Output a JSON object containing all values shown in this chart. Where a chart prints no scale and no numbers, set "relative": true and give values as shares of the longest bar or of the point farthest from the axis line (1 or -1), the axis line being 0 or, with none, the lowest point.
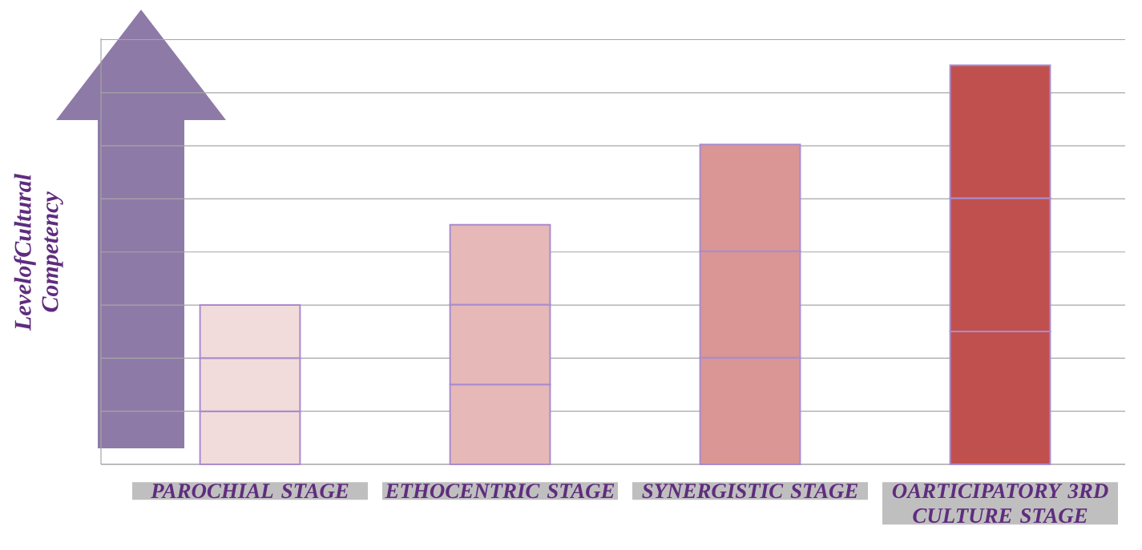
{
  "chart_data": {
    "type": "bar",
    "stacked": true,
    "relative": true,
    "grid": "y",
    "ylabel": "LevelofCultural Competency",
    "categories": [
      "PAROCHIAL STAGE",
      "ETHOCENTRIC STAGE",
      "SYNERGISTIC STAGE",
      "OARTICIPATORY 3RD CULTURE STAGE"
    ],
    "series": [
      {
        "colors": [
          "#f2dcdb",
          "#e6b9b8",
          "#d99694",
          "#c0504d"
        ],
        "values": [
          0.133,
          0.2,
          0.267,
          0.333
        ]
      },
      {
        "colors": [
          "#f2dcdb",
          "#e6b9b8",
          "#d99694",
          "#c0504d"
        ],
        "values": [
          0.133,
          0.2,
          0.267,
          0.334
        ]
      },
      {
        "colors": [
          "#f2dcdb",
          "#e6b9b8",
          "#d99694",
          "#c0504d"
        ],
        "values": [
          0.133,
          0.2,
          0.267,
          0.333
        ]
      }
    ]
  }
}
